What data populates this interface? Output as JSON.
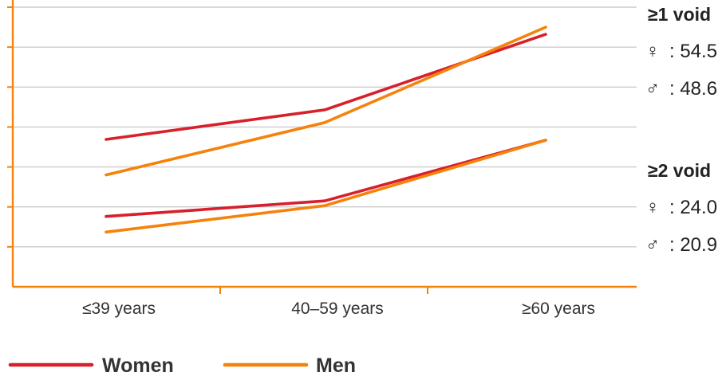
{
  "colors": {
    "women": "#d81f2a",
    "men": "#f5820b",
    "axis": "#f5820b",
    "grid": "#cccccc"
  },
  "chart_data": {
    "type": "line",
    "title": "",
    "xlabel": "",
    "ylabel": "",
    "categories": [
      "≤39 years",
      "40–59 years",
      "≥60 years"
    ],
    "ylim": [
      0,
      70
    ],
    "grid": true,
    "legend_position": "bottom",
    "series": [
      {
        "name": "Women",
        "group": "≥1 void",
        "values": [
          36.9,
          44.3,
          63.2
        ]
      },
      {
        "name": "Men",
        "group": "≥1 void",
        "values": [
          28.0,
          41.1,
          65.0
        ]
      },
      {
        "name": "Women",
        "group": "≥2 void",
        "values": [
          17.6,
          21.5,
          36.7
        ]
      },
      {
        "name": "Men",
        "group": "≥2 void",
        "values": [
          13.7,
          20.3,
          36.7
        ]
      }
    ],
    "legend": [
      {
        "label": "Women",
        "color": "#d81f2a"
      },
      {
        "label": "Men",
        "color": "#f5820b"
      }
    ],
    "annotations": [
      {
        "title": "≥1 void",
        "rows": [
          {
            "icon": "female-symbol-icon",
            "symbol": "♀",
            "text": ": 54.5"
          },
          {
            "icon": "male-symbol-icon",
            "symbol": "♂",
            "text": ": 48.6"
          }
        ]
      },
      {
        "title": "≥2 void",
        "rows": [
          {
            "icon": "female-symbol-icon",
            "symbol": "♀",
            "text": ": 24.0"
          },
          {
            "icon": "male-symbol-icon",
            "symbol": "♂",
            "text": ": 20.9"
          }
        ]
      }
    ]
  }
}
